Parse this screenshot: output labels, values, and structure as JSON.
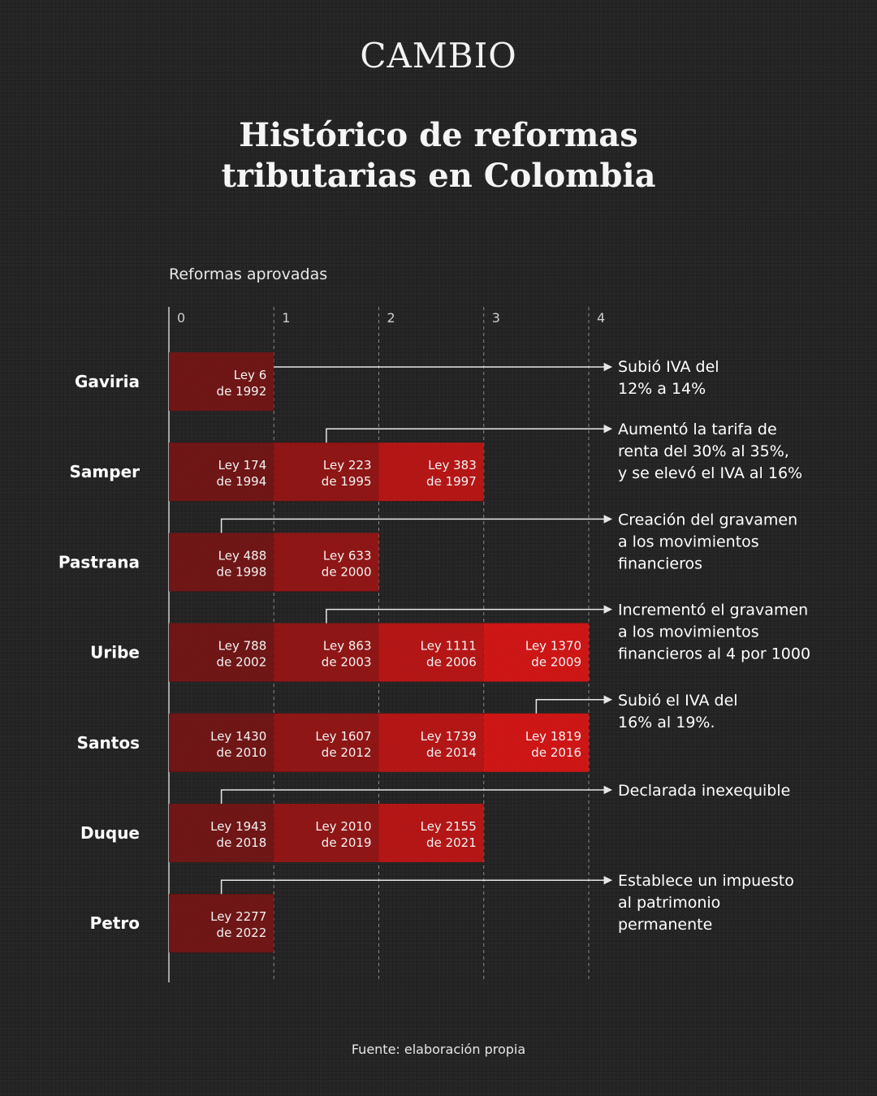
{
  "brand": "CAMBIO",
  "title_line1": "Histórico de reformas",
  "title_line2": "tributarias en Colombia",
  "source": "Fuente: elaboración propia",
  "colors": {
    "c1": "#7a1a1a",
    "c2": "#9c1a1a",
    "c3": "#c41c1c",
    "c4": "#e01d1d",
    "line": "#e6e6e6"
  },
  "chart_data": {
    "type": "bar",
    "orientation": "horizontal-stacked",
    "xlabel": "Reformas aprovadas",
    "xlim": [
      0,
      4
    ],
    "xticks": [
      "0",
      "1",
      "2",
      "3",
      "4"
    ],
    "categories": [
      "Gaviria",
      "Samper",
      "Pastrana",
      "Uribe",
      "Santos",
      "Duque",
      "Petro"
    ],
    "values": [
      1,
      3,
      2,
      4,
      4,
      3,
      1
    ],
    "segments": [
      [
        {
          "l1": "Ley 6",
          "l2": "de 1992"
        }
      ],
      [
        {
          "l1": "Ley 174",
          "l2": "de 1994"
        },
        {
          "l1": "Ley 223",
          "l2": "de 1995"
        },
        {
          "l1": "Ley 383",
          "l2": "de 1997"
        }
      ],
      [
        {
          "l1": "Ley 488",
          "l2": "de 1998"
        },
        {
          "l1": "Ley 633",
          "l2": "de 2000"
        }
      ],
      [
        {
          "l1": "Ley 788",
          "l2": "de 2002"
        },
        {
          "l1": "Ley 863",
          "l2": "de 2003"
        },
        {
          "l1": "Ley 1111",
          "l2": "de 2006"
        },
        {
          "l1": "Ley 1370",
          "l2": "de 2009"
        }
      ],
      [
        {
          "l1": "Ley 1430",
          "l2": "de 2010"
        },
        {
          "l1": "Ley 1607",
          "l2": "de 2012"
        },
        {
          "l1": "Ley 1739",
          "l2": "de 2014"
        },
        {
          "l1": "Ley 1819",
          "l2": "de 2016"
        }
      ],
      [
        {
          "l1": "Ley 1943",
          "l2": "de 2018"
        },
        {
          "l1": "Ley 2010",
          "l2": "de 2019"
        },
        {
          "l1": "Ley 2155",
          "l2": "de 2021"
        }
      ],
      [
        {
          "l1": "Ley 2277",
          "l2": "de 2022"
        }
      ]
    ],
    "annotations": [
      {
        "segment": 1,
        "lines": [
          "Subió IVA del",
          "12% a 14%"
        ]
      },
      {
        "segment": 2,
        "lines": [
          "Aumentó la tarifa de",
          "renta del 30% al 35%,",
          "y se elevó el IVA al 16%"
        ]
      },
      {
        "segment": 1,
        "lines": [
          "Creación del gravamen",
          "a los movimientos",
          "financieros"
        ]
      },
      {
        "segment": 2,
        "lines": [
          "Incrementó el gravamen",
          "a los movimientos",
          "financieros al 4 por 1000"
        ]
      },
      {
        "segment": 4,
        "lines": [
          "Subió el IVA del",
          "16% al 19%."
        ]
      },
      {
        "segment": 1,
        "lines": [
          "Declarada inexequible"
        ]
      },
      {
        "segment": 1,
        "lines": [
          "Establece un impuesto",
          "al patrimonio",
          "permanente"
        ]
      }
    ]
  }
}
